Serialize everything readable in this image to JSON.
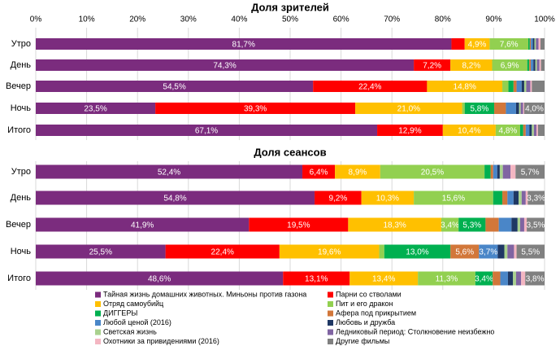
{
  "chart_data": {
    "type": "bar",
    "orientation": "horizontal",
    "stacked": true,
    "categories": [
      "Утро",
      "День",
      "Вечер",
      "Ночь",
      "Итого"
    ],
    "xlim": [
      0,
      100
    ],
    "xticks": [
      {
        "value": 0,
        "label": "0%"
      },
      {
        "value": 10,
        "label": "10%"
      },
      {
        "value": 20,
        "label": "20%"
      },
      {
        "value": 30,
        "label": "30%"
      },
      {
        "value": 40,
        "label": "40%"
      },
      {
        "value": 50,
        "label": "50%"
      },
      {
        "value": 60,
        "label": "60%"
      },
      {
        "value": 70,
        "label": "70%"
      },
      {
        "value": 80,
        "label": "80%"
      },
      {
        "value": 90,
        "label": "90%"
      },
      {
        "value": 100,
        "label": "100%"
      }
    ],
    "grid": true,
    "series": [
      {
        "name": "Тайная жизнь домашних животных. Миньоны против газона",
        "color": "#7b2c7e"
      },
      {
        "name": "Парни со стволами",
        "color": "#ff0000"
      },
      {
        "name": "Отряд самоубийц",
        "color": "#ffc000"
      },
      {
        "name": "Пит и его дракон",
        "color": "#92d050"
      },
      {
        "name": "ДИГГЕРЫ",
        "color": "#00b050"
      },
      {
        "name": "Афера под прикрытием",
        "color": "#d2773a"
      },
      {
        "name": "Любой ценой (2016)",
        "color": "#4a86c8"
      },
      {
        "name": "Любовь и дружба",
        "color": "#1f3864"
      },
      {
        "name": "Светская жизнь",
        "color": "#a9d18e"
      },
      {
        "name": "Ледниковый период: Столкновение неизбежно",
        "color": "#8064a2"
      },
      {
        "name": "Охотники за привидениями (2016)",
        "color": "#f4b6c2"
      },
      {
        "name": "Другие фильмы",
        "color": "#808080"
      }
    ],
    "panels": [
      {
        "title": "Доля зрителей",
        "series": [
          {
            "values": [
              81.7,
              74.3,
              54.5,
              23.5,
              67.1
            ],
            "value_labels": [
              "81,7%",
              "74,3%",
              "54,5%",
              "23,5%",
              "67,1%"
            ]
          },
          {
            "values": [
              2.6,
              7.2,
              22.4,
              39.3,
              12.9
            ],
            "value_labels": [
              null,
              "7,2%",
              "22,4%",
              "39,3%",
              "12,9%"
            ]
          },
          {
            "values": [
              4.9,
              8.2,
              14.8,
              21.0,
              10.4
            ],
            "value_labels": [
              "4,9%",
              "8,2%",
              "14,8%",
              "21,0%",
              "10,4%"
            ]
          },
          {
            "values": [
              7.6,
              6.9,
              1.2,
              0.5,
              4.8
            ],
            "value_labels": [
              "7,6%",
              "6,9%",
              null,
              null,
              "4,8%"
            ]
          },
          {
            "values": [
              0.3,
              0.4,
              1.0,
              5.8,
              0.6
            ],
            "value_labels": [
              null,
              null,
              null,
              "5,8%",
              null
            ]
          },
          {
            "values": [
              0.2,
              0.3,
              0.6,
              2.3,
              0.5
            ]
          },
          {
            "values": [
              0.4,
              0.5,
              1.0,
              2.0,
              0.7
            ]
          },
          {
            "values": [
              0.3,
              0.4,
              0.5,
              0.6,
              0.5
            ]
          },
          {
            "values": [
              0.3,
              0.3,
              0.4,
              0.3,
              0.4
            ]
          },
          {
            "values": [
              0.5,
              0.5,
              0.8,
              0.5,
              0.5
            ]
          },
          {
            "values": [
              0.4,
              0.3,
              0.3,
              0.2,
              0.3
            ]
          },
          {
            "values": [
              0.8,
              0.7,
              2.5,
              4.0,
              1.3
            ],
            "value_labels": [
              null,
              null,
              null,
              "4,0%",
              null
            ]
          }
        ]
      },
      {
        "title": "Доля сеансов",
        "series": [
          {
            "values": [
              52.4,
              54.8,
              41.9,
              25.5,
              48.6
            ],
            "value_labels": [
              "52,4%",
              "54,8%",
              "41,9%",
              "25,5%",
              "48,6%"
            ]
          },
          {
            "values": [
              6.4,
              9.2,
              19.5,
              22.4,
              13.1
            ],
            "value_labels": [
              "6,4%",
              "9,2%",
              "19,5%",
              "22,4%",
              "13,1%"
            ]
          },
          {
            "values": [
              8.9,
              10.3,
              18.3,
              19.6,
              13.4
            ],
            "value_labels": [
              "8,9%",
              "10,3%",
              "18,3%",
              "19,6%",
              "13,4%"
            ]
          },
          {
            "values": [
              20.5,
              15.6,
              3.4,
              1.0,
              11.3
            ],
            "value_labels": [
              "20,5%",
              "15,6%",
              "3,4%",
              null,
              "11,3%"
            ]
          },
          {
            "values": [
              1.2,
              1.8,
              5.3,
              13.0,
              3.4
            ],
            "value_labels": [
              null,
              null,
              "5,3%",
              "13,0%",
              "3,4%"
            ]
          },
          {
            "values": [
              0.5,
              1.0,
              2.6,
              5.6,
              1.5
            ],
            "value_labels": [
              null,
              null,
              null,
              "5,6%",
              null
            ]
          },
          {
            "values": [
              0.8,
              1.2,
              2.5,
              3.7,
              1.5
            ],
            "value_labels": [
              null,
              null,
              null,
              "3,7%",
              null
            ]
          },
          {
            "values": [
              0.5,
              1.0,
              1.2,
              1.3,
              1.0
            ]
          },
          {
            "values": [
              0.6,
              0.6,
              0.5,
              0.6,
              0.6
            ]
          },
          {
            "values": [
              1.5,
              0.8,
              0.8,
              1.3,
              1.0
            ]
          },
          {
            "values": [
              1.0,
              0.4,
              0.5,
              0.5,
              0.8
            ]
          },
          {
            "values": [
              5.7,
              3.3,
              3.5,
              5.5,
              3.8
            ],
            "value_labels": [
              "5,7%",
              "3,3%",
              "3,5%",
              "5,5%",
              "3,8%"
            ]
          }
        ]
      }
    ]
  }
}
